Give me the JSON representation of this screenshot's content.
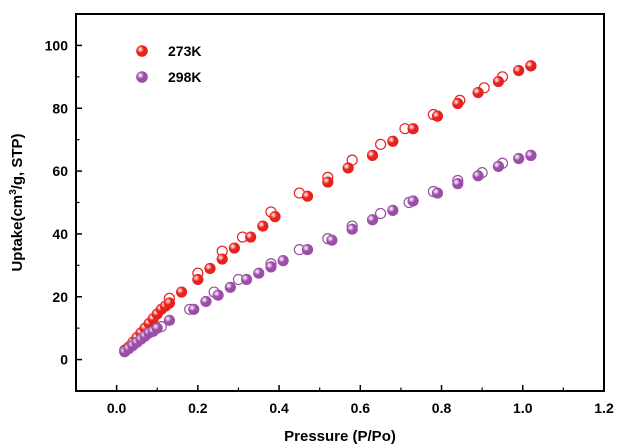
{
  "chart_data": {
    "type": "scatter",
    "xlabel": "Pressure (P/Po)",
    "ylabel_parts": {
      "prefix": "Uptake(cm",
      "sup": "3",
      "suffix": "/g, STP)"
    },
    "xlim": [
      -0.1,
      1.2
    ],
    "ylim": [
      -10,
      110
    ],
    "xticks": [
      0.0,
      0.2,
      0.4,
      0.6,
      0.8,
      1.0,
      1.2
    ],
    "xtick_labels": [
      "0.0",
      "0.2",
      "0.4",
      "0.6",
      "0.8",
      "1.0",
      "1.2"
    ],
    "yticks": [
      0,
      20,
      40,
      60,
      80,
      100
    ],
    "ytick_labels": [
      "0",
      "20",
      "40",
      "60",
      "80",
      "100"
    ],
    "legend_position": "top-left",
    "series": [
      {
        "name": "273K",
        "color": "#e8211d",
        "adsorption": {
          "x": [
            0.02,
            0.03,
            0.04,
            0.05,
            0.06,
            0.07,
            0.08,
            0.09,
            0.1,
            0.11,
            0.12,
            0.13,
            0.16,
            0.2,
            0.23,
            0.26,
            0.29,
            0.33,
            0.36,
            0.39,
            0.47,
            0.52,
            0.57,
            0.63,
            0.68,
            0.73,
            0.79,
            0.84,
            0.89,
            0.94,
            0.99,
            1.02
          ],
          "y": [
            3,
            4,
            5.5,
            7,
            8.5,
            10,
            11.5,
            13,
            14.5,
            16,
            17,
            18,
            21.5,
            25.5,
            29,
            32,
            35.5,
            39,
            42.5,
            45.5,
            52,
            56.5,
            61,
            65,
            69.5,
            73.5,
            77.5,
            81.5,
            85,
            88.5,
            92,
            93.5
          ]
        },
        "desorption": {
          "x": [
            0.13,
            0.2,
            0.26,
            0.31,
            0.38,
            0.45,
            0.52,
            0.58,
            0.65,
            0.71,
            0.78,
            0.845,
            0.905,
            0.95,
            1.02
          ],
          "y": [
            19.5,
            27.5,
            34.5,
            39,
            47,
            53,
            58,
            63.5,
            68.5,
            73.5,
            78,
            82.5,
            86.5,
            90,
            93.5
          ]
        }
      },
      {
        "name": "298K",
        "color": "#9b4ea8",
        "adsorption": {
          "x": [
            0.02,
            0.03,
            0.04,
            0.05,
            0.06,
            0.07,
            0.08,
            0.09,
            0.1,
            0.13,
            0.19,
            0.22,
            0.25,
            0.28,
            0.32,
            0.35,
            0.38,
            0.41,
            0.47,
            0.53,
            0.58,
            0.63,
            0.68,
            0.73,
            0.79,
            0.84,
            0.89,
            0.94,
            0.99,
            1.02
          ],
          "y": [
            2.5,
            3.5,
            4.5,
            5.5,
            6.5,
            7.5,
            8.5,
            9,
            10,
            12.5,
            16,
            18.5,
            20.5,
            23,
            25.5,
            27.5,
            29.5,
            31.5,
            35,
            38,
            41.5,
            44.5,
            47.5,
            50.5,
            53,
            56,
            58.5,
            61.5,
            64,
            65
          ]
        },
        "desorption": {
          "x": [
            0.11,
            0.18,
            0.24,
            0.3,
            0.38,
            0.45,
            0.52,
            0.58,
            0.65,
            0.72,
            0.78,
            0.84,
            0.9,
            0.95,
            1.02
          ],
          "y": [
            10.5,
            16,
            21.5,
            25.5,
            30.5,
            35,
            38.5,
            42.5,
            46.5,
            50,
            53.5,
            57,
            59.5,
            62.5,
            65
          ]
        }
      }
    ]
  }
}
